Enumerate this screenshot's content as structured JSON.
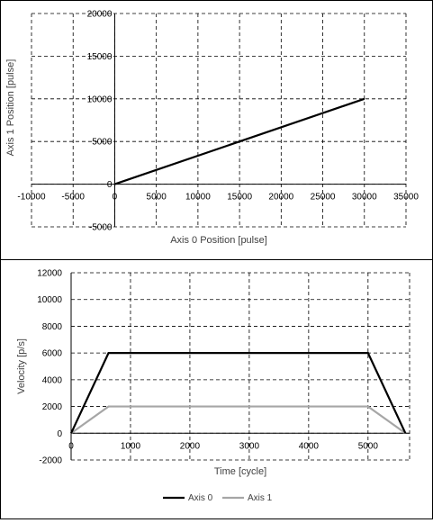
{
  "chart_data": [
    {
      "type": "line",
      "xlabel": "Axis 0 Position [pulse]",
      "ylabel": "Axis 1 Position [pulse]",
      "xlim": [
        -10000,
        35000
      ],
      "ylim": [
        -5000,
        20000
      ],
      "xticks": [
        -10000,
        -5000,
        0,
        5000,
        10000,
        15000,
        20000,
        25000,
        30000,
        35000
      ],
      "yticks": [
        -5000,
        0,
        5000,
        10000,
        15000,
        20000
      ],
      "grid": true,
      "series": [
        {
          "color": "#000000",
          "x": [
            0,
            30000
          ],
          "y": [
            0,
            10000
          ]
        }
      ]
    },
    {
      "type": "line",
      "xlabel": "Time [cycle]",
      "ylabel": "Velocity [p/s]",
      "xlim": [
        0,
        5700
      ],
      "ylim": [
        -2000,
        12000
      ],
      "xticks": [
        0,
        1000,
        2000,
        3000,
        4000,
        5000
      ],
      "yticks": [
        -2000,
        0,
        2000,
        4000,
        6000,
        8000,
        10000,
        12000
      ],
      "grid": true,
      "legend": "bottom",
      "series": [
        {
          "name": "Axis 0",
          "color": "#000000",
          "x": [
            0,
            630,
            5000,
            5630
          ],
          "y": [
            0,
            6000,
            6000,
            0
          ]
        },
        {
          "name": "Axis 1",
          "color": "#a6a6a6",
          "x": [
            0,
            630,
            5000,
            5630
          ],
          "y": [
            0,
            2000,
            2000,
            0
          ]
        }
      ]
    }
  ]
}
